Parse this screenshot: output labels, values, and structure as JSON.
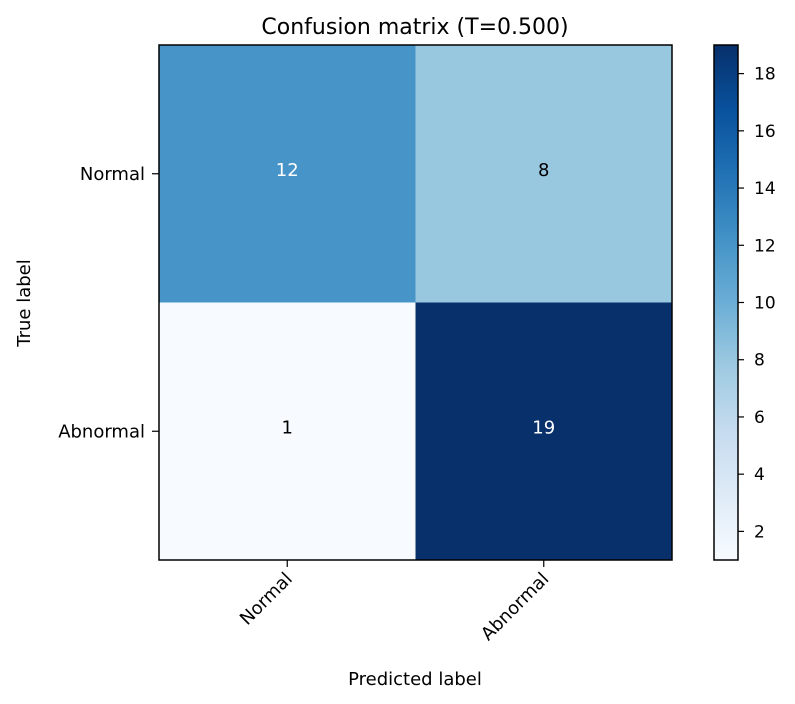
{
  "chart_data": {
    "type": "heatmap",
    "title": "Confusion matrix (T=0.500)",
    "xlabel": "Predicted label",
    "ylabel": "True label",
    "x_categories": [
      "Normal",
      "Abnormal"
    ],
    "y_categories": [
      "Normal",
      "Abnormal"
    ],
    "values": [
      [
        12,
        8
      ],
      [
        1,
        19
      ]
    ],
    "colormap": "Blues",
    "colorbar": {
      "range": [
        1,
        19
      ],
      "ticks": [
        2,
        4,
        6,
        8,
        10,
        12,
        14,
        16,
        18
      ],
      "tick_labels": [
        "2",
        "4",
        "6",
        "8",
        "10",
        "12",
        "14",
        "16",
        "18"
      ]
    },
    "grid": false
  }
}
